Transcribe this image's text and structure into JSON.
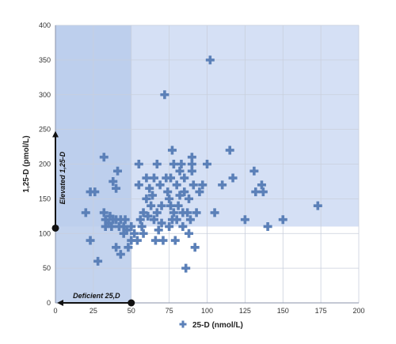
{
  "chart_data": {
    "type": "scatter",
    "title": "",
    "xlabel": "25-D (nmol/L)",
    "ylabel": "1,25-D (pmol/L)",
    "xlim": [
      0,
      200
    ],
    "ylim": [
      0,
      400
    ],
    "xticks": [
      0,
      25,
      50,
      75,
      100,
      125,
      150,
      175,
      200
    ],
    "yticks": [
      0,
      50,
      100,
      150,
      200,
      250,
      300,
      350,
      400
    ],
    "grid": true,
    "legend": "bottom",
    "colors": {
      "marker": "#5b80b8",
      "deficient_region": "#b9cbeb",
      "elevated_region": "#d5e0f5",
      "arrow": "#111111"
    },
    "annotations": {
      "deficient": "Deficient 25,D",
      "elevated": "Elevated 1,25-D"
    },
    "regions": {
      "deficient_25d_max": 50,
      "elevated_125d_min": 110
    },
    "series": [
      {
        "name": "25-D (nmol/L)",
        "marker": "plus",
        "points": [
          [
            20,
            130
          ],
          [
            23,
            160
          ],
          [
            26,
            160
          ],
          [
            23,
            90
          ],
          [
            28,
            60
          ],
          [
            32,
            210
          ],
          [
            32,
            130
          ],
          [
            33,
            120
          ],
          [
            33,
            110
          ],
          [
            35,
            115
          ],
          [
            36,
            125
          ],
          [
            37,
            110
          ],
          [
            38,
            120
          ],
          [
            38,
            175
          ],
          [
            40,
            165
          ],
          [
            41,
            190
          ],
          [
            40,
            120
          ],
          [
            40,
            80
          ],
          [
            42,
            110
          ],
          [
            43,
            70
          ],
          [
            43,
            120
          ],
          [
            45,
            100
          ],
          [
            45,
            110
          ],
          [
            46,
            120
          ],
          [
            47,
            105
          ],
          [
            48,
            80
          ],
          [
            50,
            110
          ],
          [
            50,
            90
          ],
          [
            52,
            100
          ],
          [
            54,
            90
          ],
          [
            55,
            170
          ],
          [
            55,
            200
          ],
          [
            56,
            120
          ],
          [
            57,
            110
          ],
          [
            58,
            130
          ],
          [
            58,
            100
          ],
          [
            60,
            180
          ],
          [
            60,
            150
          ],
          [
            61,
            125
          ],
          [
            62,
            165
          ],
          [
            63,
            140
          ],
          [
            64,
            155
          ],
          [
            65,
            120
          ],
          [
            65,
            180
          ],
          [
            66,
            90
          ],
          [
            67,
            130
          ],
          [
            67,
            200
          ],
          [
            68,
            105
          ],
          [
            69,
            170
          ],
          [
            70,
            115
          ],
          [
            70,
            140
          ],
          [
            71,
            90
          ],
          [
            72,
            300
          ],
          [
            73,
            180
          ],
          [
            74,
            160
          ],
          [
            75,
            150
          ],
          [
            75,
            110
          ],
          [
            76,
            140
          ],
          [
            76,
            180
          ],
          [
            77,
            220
          ],
          [
            77,
            120
          ],
          [
            78,
            130
          ],
          [
            78,
            200
          ],
          [
            79,
            90
          ],
          [
            80,
            170
          ],
          [
            80,
            120
          ],
          [
            81,
            140
          ],
          [
            82,
            155
          ],
          [
            82,
            190
          ],
          [
            83,
            200
          ],
          [
            84,
            110
          ],
          [
            84,
            130
          ],
          [
            85,
            180
          ],
          [
            85,
            160
          ],
          [
            86,
            50
          ],
          [
            87,
            130
          ],
          [
            88,
            100
          ],
          [
            88,
            150
          ],
          [
            89,
            120
          ],
          [
            90,
            200
          ],
          [
            90,
            210
          ],
          [
            90,
            190
          ],
          [
            91,
            170
          ],
          [
            92,
            80
          ],
          [
            93,
            130
          ],
          [
            95,
            160
          ],
          [
            97,
            170
          ],
          [
            100,
            200
          ],
          [
            102,
            350
          ],
          [
            105,
            130
          ],
          [
            110,
            170
          ],
          [
            115,
            220
          ],
          [
            117,
            180
          ],
          [
            125,
            120
          ],
          [
            131,
            190
          ],
          [
            132,
            160
          ],
          [
            136,
            170
          ],
          [
            137,
            160
          ],
          [
            140,
            110
          ],
          [
            150,
            120
          ],
          [
            173,
            140
          ]
        ]
      }
    ]
  }
}
